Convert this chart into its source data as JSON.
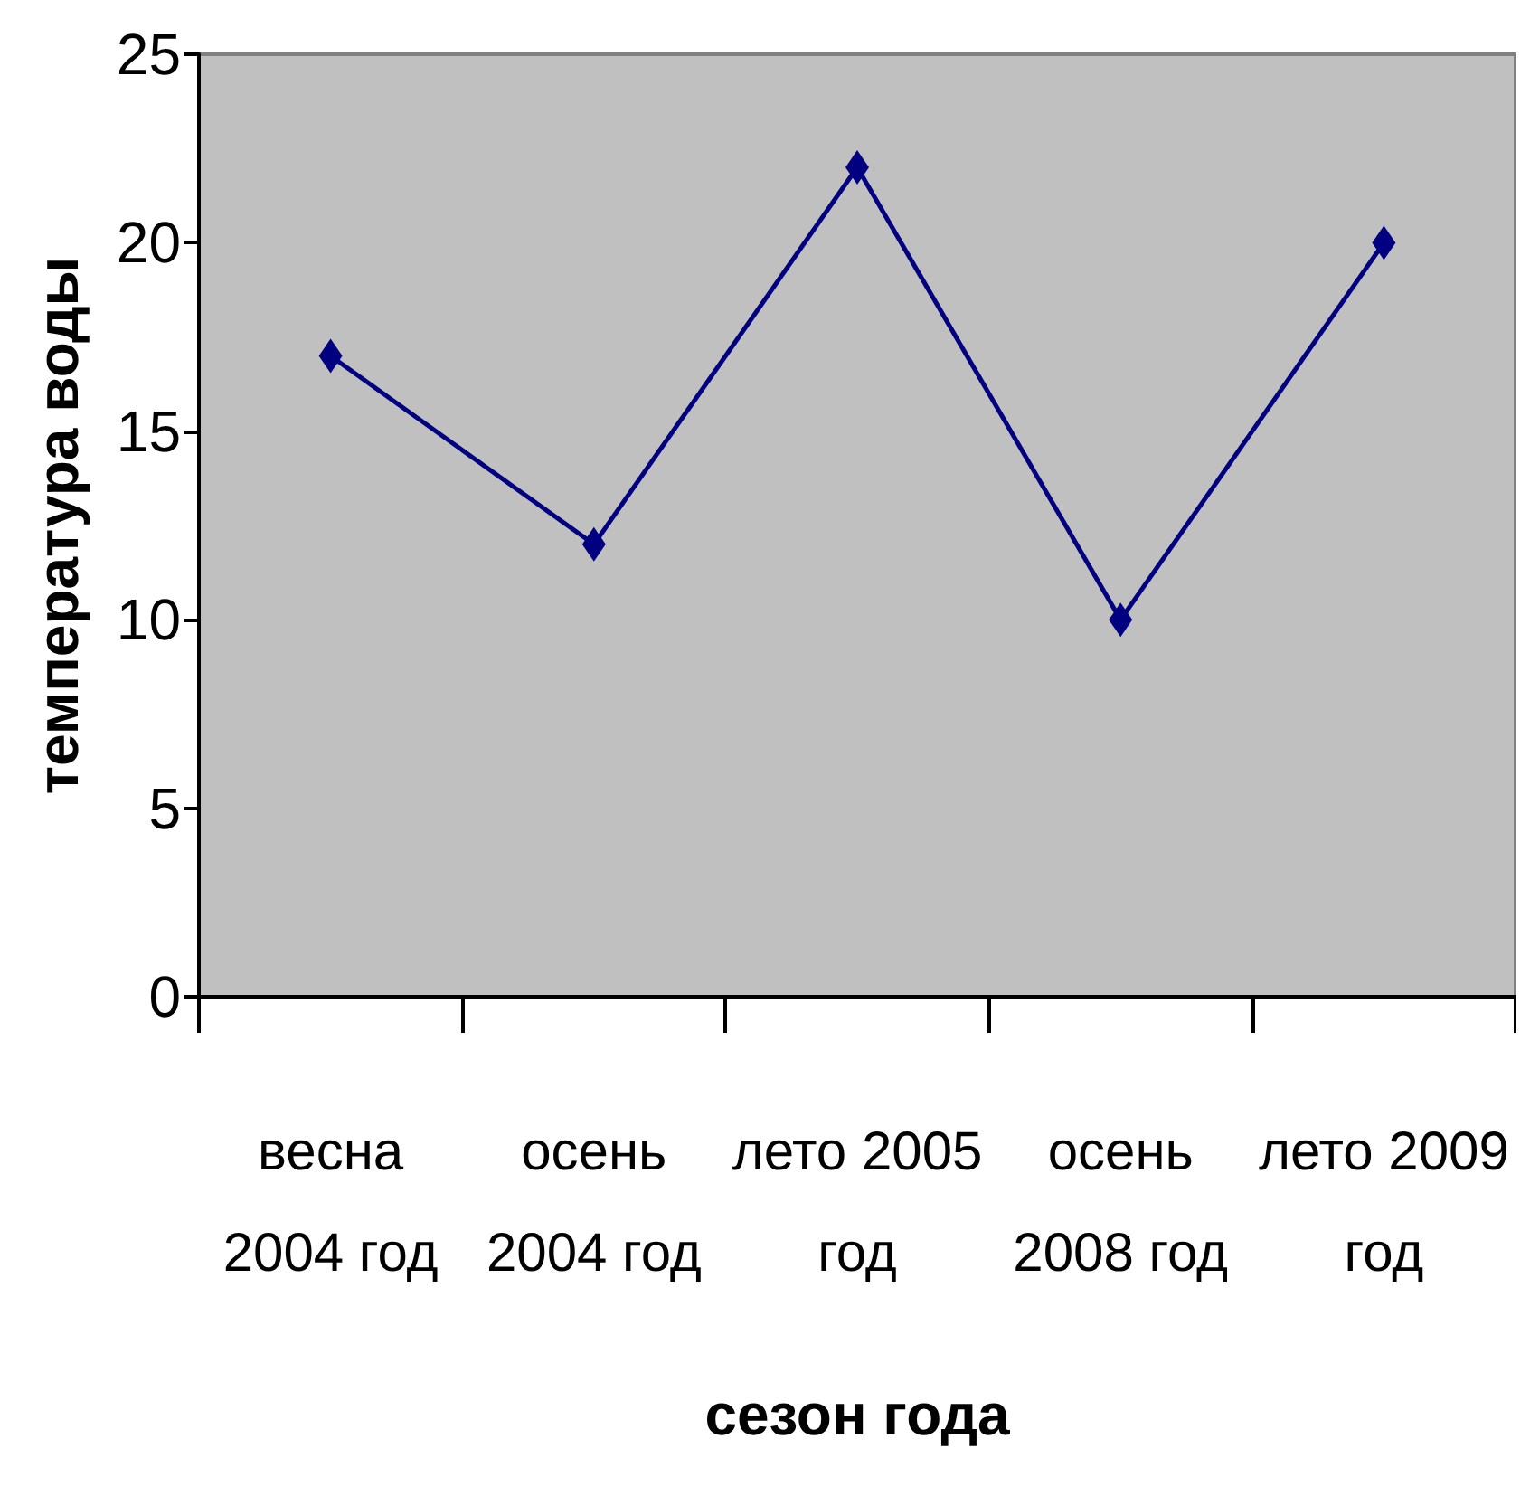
{
  "chart_data": {
    "type": "line",
    "xlabel": "сезон года",
    "ylabel": "температура воды",
    "categories": [
      "весна\n2004 год",
      "осень\n2004 год",
      "лето 2005\nгод",
      "осень\n2008 год",
      "лето 2009\nгод"
    ],
    "series": [
      {
        "color": "#000080",
        "values": [
          17,
          12,
          22,
          10,
          20
        ]
      }
    ],
    "ylim": [
      0,
      25
    ],
    "yticks": [
      0,
      5,
      10,
      15,
      20,
      25
    ],
    "grid": false,
    "marker": "diamond",
    "line_style": "solid"
  }
}
